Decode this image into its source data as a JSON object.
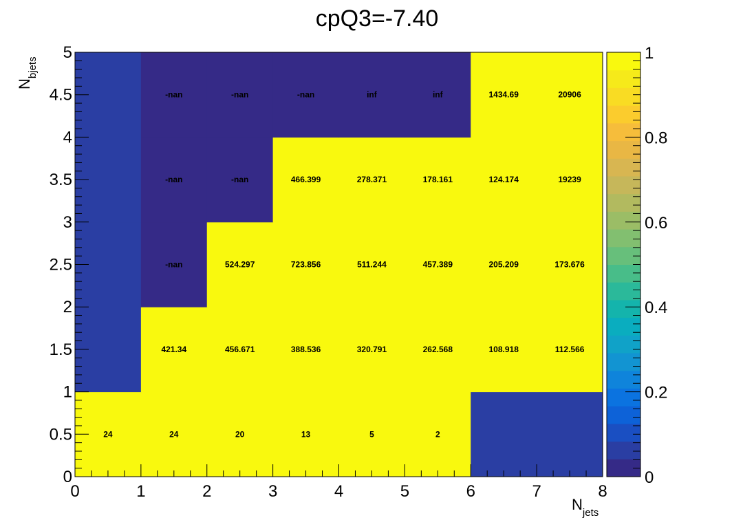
{
  "chart_data": {
    "type": "heatmap",
    "title": "cpQ3=-7.40",
    "xlabel": {
      "main": "N",
      "sub": "jets"
    },
    "ylabel": {
      "main": "N",
      "sub": "bjets"
    },
    "xlim": [
      0,
      8
    ],
    "ylim": [
      0,
      5
    ],
    "x_bins": [
      0,
      1,
      2,
      3,
      4,
      5,
      6,
      7,
      8
    ],
    "y_bins": [
      0,
      1,
      2,
      3,
      4,
      5
    ],
    "x_ticks": [
      "0",
      "1",
      "2",
      "3",
      "4",
      "5",
      "6",
      "7",
      "8"
    ],
    "y_ticks": [
      "0",
      "0.5",
      "1",
      "1.5",
      "2",
      "2.5",
      "3",
      "3.5",
      "4",
      "4.5",
      "5"
    ],
    "y_tick_values": [
      0,
      0.5,
      1,
      1.5,
      2,
      2.5,
      3,
      3.5,
      4,
      4.5,
      5
    ],
    "zlim": [
      0,
      1
    ],
    "z_ticks": [
      "0",
      "0.2",
      "0.4",
      "0.6",
      "0.8",
      "1"
    ],
    "z_tick_values": [
      0,
      0.2,
      0.4,
      0.6,
      0.8,
      1
    ],
    "palette": [
      "#352a87",
      "#2a3ea3",
      "#1a4fc2",
      "#0d62d8",
      "#0b73e0",
      "#0f84db",
      "#1294d2",
      "#10a2c8",
      "#0aadbf",
      "#14b4ac",
      "#2bb99a",
      "#48bd89",
      "#67bf7b",
      "#82bf70",
      "#9bbd66",
      "#b2ba5f",
      "#c6b75a",
      "#d8b651",
      "#e9b744",
      "#f6bd3b",
      "#fbcc2d",
      "#f9dc23",
      "#f6ea1a",
      "#f9f90e"
    ],
    "cells": [
      {
        "x": 0.5,
        "y": 0.5,
        "z": 1,
        "label": "24"
      },
      {
        "x": 1.5,
        "y": 0.5,
        "z": 1,
        "label": "24"
      },
      {
        "x": 2.5,
        "y": 0.5,
        "z": 1,
        "label": "20"
      },
      {
        "x": 3.5,
        "y": 0.5,
        "z": 1,
        "label": "13"
      },
      {
        "x": 4.5,
        "y": 0.5,
        "z": 1,
        "label": "5"
      },
      {
        "x": 5.5,
        "y": 0.5,
        "z": 1,
        "label": "2"
      },
      {
        "x": 6.5,
        "y": 0.5,
        "z": 0.05,
        "label": ""
      },
      {
        "x": 7.5,
        "y": 0.5,
        "z": 0.05,
        "label": ""
      },
      {
        "x": 0.5,
        "y": 1.5,
        "z": 0.05,
        "label": ""
      },
      {
        "x": 1.5,
        "y": 1.5,
        "z": 1,
        "label": "421.34"
      },
      {
        "x": 2.5,
        "y": 1.5,
        "z": 1,
        "label": "456.671"
      },
      {
        "x": 3.5,
        "y": 1.5,
        "z": 1,
        "label": "388.536"
      },
      {
        "x": 4.5,
        "y": 1.5,
        "z": 1,
        "label": "320.791"
      },
      {
        "x": 5.5,
        "y": 1.5,
        "z": 1,
        "label": "262.568"
      },
      {
        "x": 6.5,
        "y": 1.5,
        "z": 1,
        "label": "108.918"
      },
      {
        "x": 7.5,
        "y": 1.5,
        "z": 1,
        "label": "112.566"
      },
      {
        "x": 0.5,
        "y": 2.5,
        "z": 0.05,
        "label": ""
      },
      {
        "x": 1.5,
        "y": 2.5,
        "z": 0,
        "label": "-nan"
      },
      {
        "x": 2.5,
        "y": 2.5,
        "z": 1,
        "label": "524.297"
      },
      {
        "x": 3.5,
        "y": 2.5,
        "z": 1,
        "label": "723.856"
      },
      {
        "x": 4.5,
        "y": 2.5,
        "z": 1,
        "label": "511.244"
      },
      {
        "x": 5.5,
        "y": 2.5,
        "z": 1,
        "label": "457.389"
      },
      {
        "x": 6.5,
        "y": 2.5,
        "z": 1,
        "label": "205.209"
      },
      {
        "x": 7.5,
        "y": 2.5,
        "z": 1,
        "label": "173.676"
      },
      {
        "x": 0.5,
        "y": 3.5,
        "z": 0.05,
        "label": ""
      },
      {
        "x": 1.5,
        "y": 3.5,
        "z": 0,
        "label": "-nan"
      },
      {
        "x": 2.5,
        "y": 3.5,
        "z": 0,
        "label": "-nan"
      },
      {
        "x": 3.5,
        "y": 3.5,
        "z": 1,
        "label": "466.399"
      },
      {
        "x": 4.5,
        "y": 3.5,
        "z": 1,
        "label": "278.371"
      },
      {
        "x": 5.5,
        "y": 3.5,
        "z": 1,
        "label": "178.161"
      },
      {
        "x": 6.5,
        "y": 3.5,
        "z": 1,
        "label": "124.174"
      },
      {
        "x": 7.5,
        "y": 3.5,
        "z": 1,
        "label": "19239"
      },
      {
        "x": 0.5,
        "y": 4.5,
        "z": 0.05,
        "label": ""
      },
      {
        "x": 1.5,
        "y": 4.5,
        "z": 0,
        "label": "-nan"
      },
      {
        "x": 2.5,
        "y": 4.5,
        "z": 0,
        "label": "-nan"
      },
      {
        "x": 3.5,
        "y": 4.5,
        "z": 0,
        "label": "-nan"
      },
      {
        "x": 4.5,
        "y": 4.5,
        "z": 0,
        "label": "inf"
      },
      {
        "x": 5.5,
        "y": 4.5,
        "z": 0,
        "label": "inf"
      },
      {
        "x": 6.5,
        "y": 4.5,
        "z": 1,
        "label": "1434.69"
      },
      {
        "x": 7.5,
        "y": 4.5,
        "z": 1,
        "label": "20906"
      }
    ],
    "grid": false,
    "legend": "colorbar-right"
  }
}
